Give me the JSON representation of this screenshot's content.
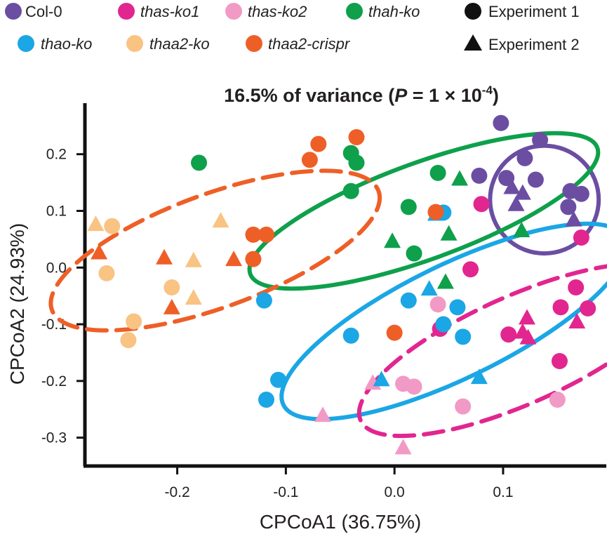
{
  "chart_data": {
    "type": "scatter",
    "title": {
      "prefix": "16.5% of variance (",
      "p_symbol": "P",
      "equals": " = 1 × 10",
      "exponent": "-4",
      "suffix": ")"
    },
    "xlabel": "CPCoA1 (36.75%)",
    "ylabel": "CPCoA2 (24.93%)",
    "xlim": [
      -0.285,
      0.195
    ],
    "ylim": [
      -0.35,
      0.29
    ],
    "xticks": [
      -0.2,
      -0.1,
      0.0,
      0.1
    ],
    "xtick_labels": [
      "-0.2",
      "-0.1",
      "0.0",
      "0.1"
    ],
    "yticks": [
      -0.3,
      -0.2,
      -0.1,
      0.0,
      0.1,
      0.2
    ],
    "ytick_labels": [
      "-0.3",
      "-0.2",
      "-0.1",
      "0.0",
      "0.1",
      "0.2"
    ],
    "legend": {
      "position": "top",
      "groups": [
        {
          "label": "Col-0",
          "color": "#6b4ea2",
          "italic": false
        },
        {
          "label": "thas-ko1",
          "color": "#e2268f",
          "italic": true
        },
        {
          "label": "thas-ko2",
          "color": "#f29ac6",
          "italic": true
        },
        {
          "label": "thah-ko",
          "color": "#0ea04b",
          "italic": true
        },
        {
          "label": "thao-ko",
          "color": "#1ba6e5",
          "italic": true
        },
        {
          "label": "thaa2-ko",
          "color": "#f9c383",
          "italic": true
        },
        {
          "label": "thaa2-crispr",
          "color": "#ee5f27",
          "italic": true
        }
      ],
      "shapes": [
        {
          "label": "Experiment 1",
          "marker": "circle",
          "color": "#111111"
        },
        {
          "label": "Experiment 2",
          "marker": "triangle",
          "color": "#111111"
        }
      ]
    },
    "ellipses": [
      {
        "group": "Col-0",
        "color": "#6b4ea2",
        "cx": 0.138,
        "cy": 0.12,
        "rx": 0.05,
        "ry": 0.095,
        "angle": 0,
        "dashed": false
      },
      {
        "group": "thah-ko",
        "color": "#0ea04b",
        "cx": 0.027,
        "cy": 0.1,
        "rx": 0.17,
        "ry": 0.085,
        "angle": -20,
        "dashed": false
      },
      {
        "group": "thao-ko",
        "color": "#1ba6e5",
        "cx": 0.055,
        "cy": -0.095,
        "rx": 0.175,
        "ry": 0.1,
        "angle": -26,
        "dashed": false
      },
      {
        "group": "thas-ko1",
        "color": "#e2268f",
        "cx": 0.115,
        "cy": -0.145,
        "rx": 0.16,
        "ry": 0.095,
        "angle": -24,
        "dashed": true
      },
      {
        "group": "thaa2-crispr",
        "color": "#ee5f27",
        "cx": -0.165,
        "cy": 0.03,
        "rx": 0.16,
        "ry": 0.1,
        "angle": -20,
        "dashed": true
      }
    ],
    "series": [
      {
        "name": "Col-0",
        "color": "#6b4ea2",
        "points": [
          [
            0.098,
            0.255,
            "circle"
          ],
          [
            0.134,
            0.225,
            "circle"
          ],
          [
            0.12,
            0.193,
            "circle"
          ],
          [
            0.078,
            0.162,
            "circle"
          ],
          [
            0.103,
            0.158,
            "circle"
          ],
          [
            0.13,
            0.155,
            "circle"
          ],
          [
            0.162,
            0.135,
            "circle"
          ],
          [
            0.172,
            0.13,
            "circle"
          ],
          [
            0.16,
            0.107,
            "circle"
          ],
          [
            0.108,
            0.142,
            "triangle"
          ],
          [
            0.118,
            0.132,
            "triangle"
          ],
          [
            0.112,
            0.112,
            "triangle"
          ],
          [
            0.165,
            0.085,
            "triangle"
          ]
        ]
      },
      {
        "name": "thas-ko1",
        "color": "#e2268f",
        "points": [
          [
            0.08,
            0.112,
            "circle"
          ],
          [
            0.172,
            0.053,
            "circle"
          ],
          [
            0.07,
            -0.003,
            "circle"
          ],
          [
            0.167,
            -0.035,
            "circle"
          ],
          [
            0.153,
            -0.07,
            "circle"
          ],
          [
            0.178,
            -0.072,
            "circle"
          ],
          [
            0.105,
            -0.118,
            "circle"
          ],
          [
            0.152,
            -0.165,
            "circle"
          ],
          [
            0.042,
            -0.108,
            "circle"
          ],
          [
            0.122,
            -0.088,
            "triangle"
          ],
          [
            0.118,
            -0.113,
            "triangle"
          ],
          [
            0.123,
            -0.123,
            "triangle"
          ],
          [
            0.168,
            -0.095,
            "triangle"
          ]
        ]
      },
      {
        "name": "thas-ko2",
        "color": "#f29ac6",
        "points": [
          [
            0.04,
            -0.065,
            "circle"
          ],
          [
            0.008,
            -0.205,
            "circle"
          ],
          [
            0.018,
            -0.21,
            "circle"
          ],
          [
            0.063,
            -0.245,
            "circle"
          ],
          [
            0.15,
            -0.233,
            "circle"
          ],
          [
            -0.066,
            -0.26,
            "triangle"
          ],
          [
            -0.02,
            -0.203,
            "triangle"
          ],
          [
            0.008,
            -0.317,
            "triangle"
          ]
        ]
      },
      {
        "name": "thah-ko",
        "color": "#0ea04b",
        "points": [
          [
            -0.18,
            0.185,
            "circle"
          ],
          [
            -0.04,
            0.202,
            "circle"
          ],
          [
            -0.035,
            0.185,
            "circle"
          ],
          [
            -0.04,
            0.135,
            "circle"
          ],
          [
            0.04,
            0.167,
            "circle"
          ],
          [
            0.013,
            0.107,
            "circle"
          ],
          [
            0.018,
            0.025,
            "circle"
          ],
          [
            0.06,
            0.157,
            "triangle"
          ],
          [
            0.05,
            0.06,
            "triangle"
          ],
          [
            -0.002,
            0.047,
            "triangle"
          ],
          [
            0.047,
            -0.025,
            "triangle"
          ],
          [
            0.117,
            0.066,
            "triangle"
          ]
        ]
      },
      {
        "name": "thao-ko",
        "color": "#1ba6e5",
        "points": [
          [
            -0.12,
            -0.058,
            "circle"
          ],
          [
            -0.107,
            -0.198,
            "circle"
          ],
          [
            -0.118,
            -0.233,
            "circle"
          ],
          [
            -0.04,
            -0.12,
            "circle"
          ],
          [
            0.013,
            -0.058,
            "circle"
          ],
          [
            0.045,
            -0.1,
            "circle"
          ],
          [
            0.058,
            -0.07,
            "circle"
          ],
          [
            0.063,
            -0.122,
            "circle"
          ],
          [
            0.045,
            0.097,
            "circle"
          ],
          [
            0.038,
            0.095,
            "triangle"
          ],
          [
            0.032,
            -0.037,
            "triangle"
          ],
          [
            -0.012,
            -0.197,
            "triangle"
          ],
          [
            0.078,
            -0.193,
            "triangle"
          ]
        ]
      },
      {
        "name": "thaa2-ko",
        "color": "#f9c383",
        "points": [
          [
            -0.26,
            0.073,
            "circle"
          ],
          [
            -0.265,
            -0.01,
            "circle"
          ],
          [
            -0.24,
            -0.095,
            "circle"
          ],
          [
            -0.245,
            -0.128,
            "circle"
          ],
          [
            -0.205,
            -0.035,
            "circle"
          ],
          [
            -0.275,
            0.077,
            "triangle"
          ],
          [
            -0.16,
            0.083,
            "triangle"
          ],
          [
            -0.185,
            0.013,
            "triangle"
          ],
          [
            -0.185,
            -0.053,
            "triangle"
          ]
        ]
      },
      {
        "name": "thaa2-crispr",
        "color": "#ee5f27",
        "points": [
          [
            -0.035,
            0.23,
            "circle"
          ],
          [
            -0.07,
            0.218,
            "circle"
          ],
          [
            -0.078,
            0.19,
            "circle"
          ],
          [
            -0.13,
            0.058,
            "circle"
          ],
          [
            -0.118,
            0.058,
            "circle"
          ],
          [
            -0.13,
            0.015,
            "circle"
          ],
          [
            0.0,
            -0.115,
            "circle"
          ],
          [
            0.038,
            0.098,
            "circle"
          ],
          [
            -0.272,
            0.027,
            "triangle"
          ],
          [
            -0.212,
            0.018,
            "triangle"
          ],
          [
            -0.148,
            0.015,
            "triangle"
          ],
          [
            -0.205,
            -0.07,
            "triangle"
          ]
        ]
      }
    ]
  }
}
